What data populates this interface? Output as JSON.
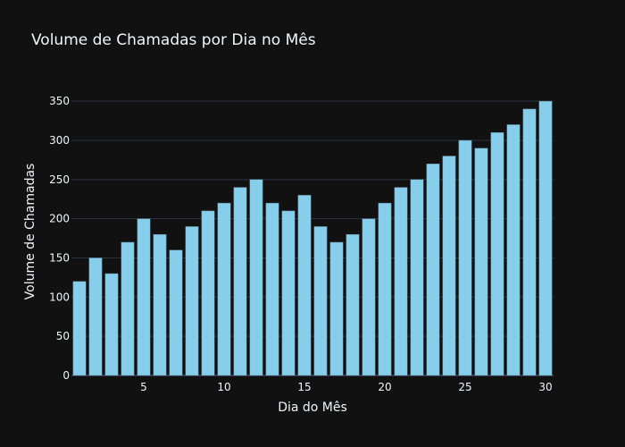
{
  "chart_data": {
    "type": "bar",
    "title": "Volume de Chamadas por Dia no Mês",
    "xlabel": "Dia do Mês",
    "ylabel": "Volume de Chamadas",
    "x": [
      1,
      2,
      3,
      4,
      5,
      6,
      7,
      8,
      9,
      10,
      11,
      12,
      13,
      14,
      15,
      16,
      17,
      18,
      19,
      20,
      21,
      22,
      23,
      24,
      25,
      26,
      27,
      28,
      29,
      30
    ],
    "values": [
      120,
      150,
      130,
      170,
      200,
      180,
      160,
      190,
      210,
      220,
      240,
      250,
      220,
      210,
      230,
      190,
      170,
      180,
      200,
      220,
      240,
      250,
      270,
      280,
      300,
      290,
      310,
      320,
      340,
      350
    ],
    "xlim": [
      0.5,
      30.5
    ],
    "ylim": [
      0,
      365
    ],
    "xticks": [
      5,
      10,
      15,
      20,
      25,
      30
    ],
    "yticks": [
      0,
      50,
      100,
      150,
      200,
      250,
      300,
      350
    ],
    "grid": true,
    "legend": "none",
    "colors": {
      "background": "#111111",
      "bar_fill": "#87ceeb",
      "text": "#f2f5fa",
      "grid": "#283442"
    }
  }
}
